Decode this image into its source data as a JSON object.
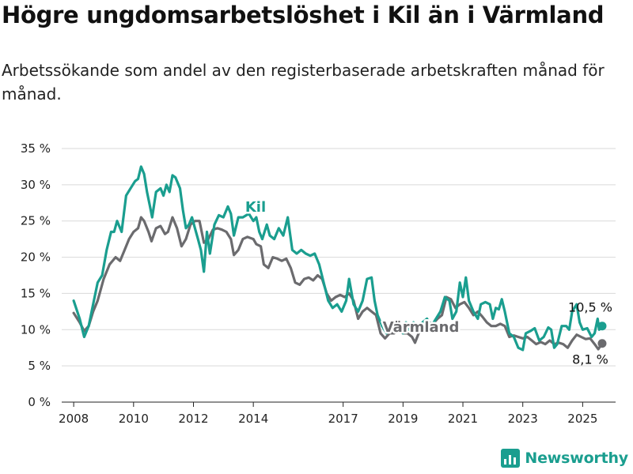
{
  "title": "Högre ungdomsarbetslöshet i Kil än i Värmland",
  "subtitle": "Arbetssökande som andel av den registerbaserade arbetskraften månad för månad.",
  "brand": "Newsworthy",
  "colors": {
    "kil": "#1a9e8f",
    "varmland": "#6b6b6e",
    "grid": "#d9d9d9",
    "axis": "#222222"
  },
  "chart_data": {
    "type": "line",
    "ylim": [
      0,
      35
    ],
    "yticks": [
      0,
      5,
      10,
      15,
      20,
      25,
      30,
      35
    ],
    "yticklabels": [
      "0 %",
      "5 %",
      "10 %",
      "15 %",
      "20 %",
      "25 %",
      "30 %",
      "35 %"
    ],
    "xlim": [
      2007.6,
      2026.1
    ],
    "xticks": [
      2008,
      2010,
      2012,
      2014,
      2017,
      2019,
      2021,
      2023,
      2025
    ],
    "xticklabels": [
      "2008",
      "2010",
      "2012",
      "2014",
      "2017",
      "2019",
      "2021",
      "2023",
      "2025"
    ],
    "grid": true,
    "series": [
      {
        "name": "Kil",
        "end_label": "10,5 %",
        "points": [
          [
            2008.0,
            14.0
          ],
          [
            2008.2,
            11.5
          ],
          [
            2008.35,
            9.0
          ],
          [
            2008.5,
            10.5
          ],
          [
            2008.65,
            13.5
          ],
          [
            2008.8,
            16.5
          ],
          [
            2008.95,
            17.5
          ],
          [
            2009.1,
            21.0
          ],
          [
            2009.25,
            23.5
          ],
          [
            2009.35,
            23.5
          ],
          [
            2009.45,
            25.0
          ],
          [
            2009.6,
            23.5
          ],
          [
            2009.75,
            28.5
          ],
          [
            2009.9,
            29.5
          ],
          [
            2010.05,
            30.5
          ],
          [
            2010.15,
            30.8
          ],
          [
            2010.25,
            32.5
          ],
          [
            2010.35,
            31.5
          ],
          [
            2010.45,
            29.0
          ],
          [
            2010.55,
            27.0
          ],
          [
            2010.62,
            25.5
          ],
          [
            2010.75,
            29.0
          ],
          [
            2010.9,
            29.5
          ],
          [
            2011.0,
            28.5
          ],
          [
            2011.1,
            30.0
          ],
          [
            2011.2,
            29.0
          ],
          [
            2011.3,
            31.3
          ],
          [
            2011.4,
            31.0
          ],
          [
            2011.55,
            29.5
          ],
          [
            2011.65,
            26.5
          ],
          [
            2011.75,
            24.0
          ],
          [
            2011.85,
            24.5
          ],
          [
            2011.95,
            25.5
          ],
          [
            2012.05,
            24.0
          ],
          [
            2012.15,
            22.5
          ],
          [
            2012.25,
            21.0
          ],
          [
            2012.35,
            18.0
          ],
          [
            2012.45,
            23.5
          ],
          [
            2012.55,
            20.5
          ],
          [
            2012.7,
            24.5
          ],
          [
            2012.85,
            25.8
          ],
          [
            2013.0,
            25.5
          ],
          [
            2013.15,
            27.0
          ],
          [
            2013.25,
            26.0
          ],
          [
            2013.35,
            23.0
          ],
          [
            2013.5,
            25.5
          ],
          [
            2013.65,
            25.5
          ],
          [
            2013.85,
            26.0
          ],
          [
            2014.0,
            25.0
          ],
          [
            2014.1,
            25.5
          ],
          [
            2014.2,
            23.5
          ],
          [
            2014.3,
            22.5
          ],
          [
            2014.45,
            24.5
          ],
          [
            2014.55,
            23.0
          ],
          [
            2014.7,
            22.5
          ],
          [
            2014.85,
            24.0
          ],
          [
            2015.0,
            23.0
          ],
          [
            2015.15,
            25.5
          ],
          [
            2015.3,
            21.0
          ],
          [
            2015.45,
            20.5
          ],
          [
            2015.6,
            21.0
          ],
          [
            2015.75,
            20.5
          ],
          [
            2015.9,
            20.2
          ],
          [
            2016.05,
            20.5
          ],
          [
            2016.2,
            19.0
          ],
          [
            2016.35,
            16.5
          ],
          [
            2016.5,
            14.0
          ],
          [
            2016.65,
            13.0
          ],
          [
            2016.8,
            13.5
          ],
          [
            2016.95,
            12.5
          ],
          [
            2017.1,
            14.0
          ],
          [
            2017.2,
            17.0
          ],
          [
            2017.35,
            13.5
          ],
          [
            2017.5,
            12.5
          ],
          [
            2017.65,
            14.0
          ],
          [
            2017.8,
            17.0
          ],
          [
            2017.95,
            17.2
          ],
          [
            2018.05,
            14.0
          ],
          [
            2018.15,
            12.0
          ],
          [
            2018.3,
            10.5
          ],
          [
            2018.45,
            9.5
          ],
          [
            2018.6,
            10.5
          ],
          [
            2018.75,
            10.0
          ],
          [
            2018.9,
            10.5
          ],
          [
            2019.0,
            9.5
          ],
          [
            2019.1,
            11.0
          ],
          [
            2019.2,
            10.0
          ],
          [
            2019.35,
            11.0
          ],
          [
            2019.5,
            10.5
          ],
          [
            2019.65,
            11.0
          ],
          [
            2019.8,
            11.5
          ],
          [
            2019.95,
            10.5
          ],
          [
            2020.1,
            11.5
          ],
          [
            2020.25,
            12.5
          ],
          [
            2020.4,
            14.5
          ],
          [
            2020.55,
            14.0
          ],
          [
            2020.65,
            11.5
          ],
          [
            2020.78,
            12.5
          ],
          [
            2020.9,
            16.5
          ],
          [
            2021.0,
            14.5
          ],
          [
            2021.1,
            17.2
          ],
          [
            2021.2,
            14.0
          ],
          [
            2021.35,
            12.5
          ],
          [
            2021.5,
            11.5
          ],
          [
            2021.6,
            13.5
          ],
          [
            2021.75,
            13.8
          ],
          [
            2021.9,
            13.5
          ],
          [
            2022.0,
            11.5
          ],
          [
            2022.1,
            13.0
          ],
          [
            2022.2,
            12.8
          ],
          [
            2022.3,
            14.2
          ],
          [
            2022.4,
            12.5
          ],
          [
            2022.55,
            9.5
          ],
          [
            2022.7,
            9.0
          ],
          [
            2022.85,
            7.5
          ],
          [
            2023.0,
            7.2
          ],
          [
            2023.1,
            9.5
          ],
          [
            2023.25,
            9.8
          ],
          [
            2023.4,
            10.2
          ],
          [
            2023.55,
            8.5
          ],
          [
            2023.7,
            9.0
          ],
          [
            2023.85,
            10.3
          ],
          [
            2023.95,
            10.0
          ],
          [
            2024.05,
            7.5
          ],
          [
            2024.15,
            8.0
          ],
          [
            2024.3,
            10.5
          ],
          [
            2024.45,
            10.5
          ],
          [
            2024.55,
            10.0
          ],
          [
            2024.65,
            12.5
          ],
          [
            2024.8,
            13.5
          ],
          [
            2024.9,
            11.0
          ],
          [
            2025.0,
            10.0
          ],
          [
            2025.15,
            10.2
          ],
          [
            2025.3,
            9.0
          ],
          [
            2025.4,
            9.5
          ],
          [
            2025.5,
            11.5
          ],
          [
            2025.55,
            10.0
          ],
          [
            2025.65,
            10.5
          ]
        ]
      },
      {
        "name": "Värmland",
        "end_label": "8,1 %",
        "points": [
          [
            2008.0,
            12.3
          ],
          [
            2008.2,
            11.0
          ],
          [
            2008.35,
            9.8
          ],
          [
            2008.5,
            10.5
          ],
          [
            2008.65,
            12.5
          ],
          [
            2008.8,
            14.0
          ],
          [
            2009.0,
            17.0
          ],
          [
            2009.2,
            19.0
          ],
          [
            2009.4,
            20.0
          ],
          [
            2009.55,
            19.5
          ],
          [
            2009.7,
            21.0
          ],
          [
            2009.85,
            22.5
          ],
          [
            2010.0,
            23.5
          ],
          [
            2010.15,
            24.0
          ],
          [
            2010.25,
            25.5
          ],
          [
            2010.35,
            25.0
          ],
          [
            2010.5,
            23.5
          ],
          [
            2010.6,
            22.2
          ],
          [
            2010.75,
            24.0
          ],
          [
            2010.9,
            24.3
          ],
          [
            2011.05,
            23.2
          ],
          [
            2011.15,
            23.5
          ],
          [
            2011.3,
            25.5
          ],
          [
            2011.45,
            24.0
          ],
          [
            2011.6,
            21.5
          ],
          [
            2011.75,
            22.5
          ],
          [
            2011.9,
            24.5
          ],
          [
            2012.05,
            25.0
          ],
          [
            2012.2,
            25.0
          ],
          [
            2012.35,
            22.0
          ],
          [
            2012.5,
            22.5
          ],
          [
            2012.65,
            23.8
          ],
          [
            2012.8,
            24.0
          ],
          [
            2012.95,
            23.8
          ],
          [
            2013.1,
            23.5
          ],
          [
            2013.25,
            22.5
          ],
          [
            2013.35,
            20.3
          ],
          [
            2013.5,
            21.0
          ],
          [
            2013.65,
            22.5
          ],
          [
            2013.8,
            22.8
          ],
          [
            2014.0,
            22.5
          ],
          [
            2014.1,
            21.8
          ],
          [
            2014.25,
            21.5
          ],
          [
            2014.35,
            19.0
          ],
          [
            2014.5,
            18.5
          ],
          [
            2014.65,
            20.0
          ],
          [
            2014.8,
            19.8
          ],
          [
            2014.95,
            19.5
          ],
          [
            2015.1,
            19.8
          ],
          [
            2015.25,
            18.5
          ],
          [
            2015.4,
            16.5
          ],
          [
            2015.55,
            16.2
          ],
          [
            2015.7,
            17.0
          ],
          [
            2015.85,
            17.2
          ],
          [
            2016.0,
            16.8
          ],
          [
            2016.15,
            17.5
          ],
          [
            2016.3,
            17.0
          ],
          [
            2016.45,
            15.0
          ],
          [
            2016.6,
            14.0
          ],
          [
            2016.75,
            14.5
          ],
          [
            2016.9,
            14.8
          ],
          [
            2017.05,
            14.5
          ],
          [
            2017.2,
            15.0
          ],
          [
            2017.35,
            14.0
          ],
          [
            2017.5,
            11.5
          ],
          [
            2017.65,
            12.5
          ],
          [
            2017.8,
            13.0
          ],
          [
            2017.95,
            12.5
          ],
          [
            2018.1,
            12.0
          ],
          [
            2018.25,
            9.5
          ],
          [
            2018.4,
            8.8
          ],
          [
            2018.55,
            9.5
          ],
          [
            2018.7,
            9.5
          ],
          [
            2018.85,
            9.8
          ],
          [
            2019.0,
            9.5
          ],
          [
            2019.15,
            9.5
          ],
          [
            2019.3,
            9.0
          ],
          [
            2019.4,
            8.2
          ],
          [
            2019.55,
            9.8
          ],
          [
            2019.7,
            10.5
          ],
          [
            2019.85,
            11.0
          ],
          [
            2020.0,
            10.8
          ],
          [
            2020.15,
            11.5
          ],
          [
            2020.3,
            12.0
          ],
          [
            2020.45,
            14.5
          ],
          [
            2020.6,
            14.2
          ],
          [
            2020.75,
            13.0
          ],
          [
            2020.9,
            13.5
          ],
          [
            2021.05,
            13.8
          ],
          [
            2021.2,
            13.0
          ],
          [
            2021.35,
            12.0
          ],
          [
            2021.5,
            12.5
          ],
          [
            2021.65,
            11.8
          ],
          [
            2021.8,
            11.0
          ],
          [
            2021.95,
            10.5
          ],
          [
            2022.1,
            10.5
          ],
          [
            2022.25,
            10.8
          ],
          [
            2022.4,
            10.5
          ],
          [
            2022.55,
            9.0
          ],
          [
            2022.7,
            9.2
          ],
          [
            2022.85,
            9.0
          ],
          [
            2023.0,
            8.8
          ],
          [
            2023.15,
            9.0
          ],
          [
            2023.3,
            8.5
          ],
          [
            2023.45,
            8.0
          ],
          [
            2023.6,
            8.3
          ],
          [
            2023.75,
            8.0
          ],
          [
            2023.9,
            8.5
          ],
          [
            2024.05,
            8.0
          ],
          [
            2024.2,
            8.2
          ],
          [
            2024.35,
            8.0
          ],
          [
            2024.5,
            7.5
          ],
          [
            2024.65,
            8.5
          ],
          [
            2024.8,
            9.3
          ],
          [
            2024.95,
            9.0
          ],
          [
            2025.1,
            8.7
          ],
          [
            2025.25,
            8.8
          ],
          [
            2025.4,
            8.0
          ],
          [
            2025.52,
            7.3
          ],
          [
            2025.65,
            8.1
          ]
        ]
      }
    ]
  }
}
